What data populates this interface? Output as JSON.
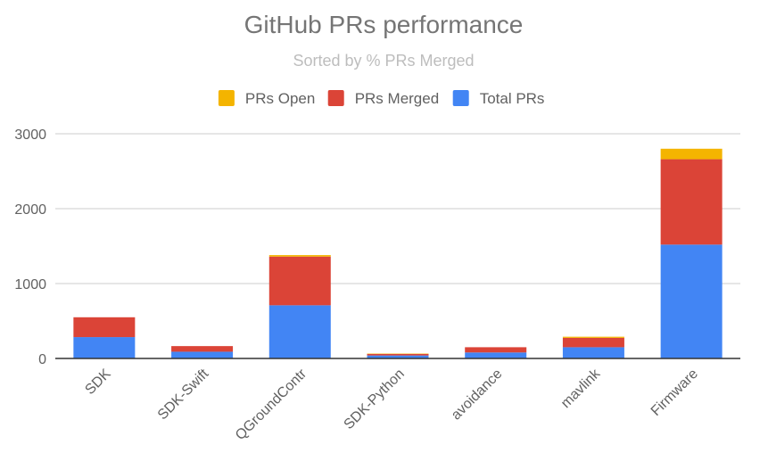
{
  "chart_data": {
    "type": "bar",
    "stacked": true,
    "title": "GitHub PRs performance",
    "subtitle": "Sorted by % PRs Merged",
    "xlabel": "",
    "ylabel": "",
    "ylim": [
      0,
      3000
    ],
    "yticks": [
      0,
      1000,
      2000,
      3000
    ],
    "grid": true,
    "legend_position": "top",
    "categories": [
      "SDK",
      "SDK-Swift",
      "QGroundContr",
      "SDK-Python",
      "avoidance",
      "mavlink",
      "Firmware"
    ],
    "series": [
      {
        "name": "Total PRs",
        "color": "#4285f4",
        "values": [
          285,
          90,
          710,
          40,
          80,
          150,
          1520
        ]
      },
      {
        "name": "PRs Merged",
        "color": "#db4437",
        "values": [
          265,
          75,
          650,
          20,
          70,
          125,
          1140
        ]
      },
      {
        "name": "PRs Open",
        "color": "#f4b400",
        "values": [
          0,
          0,
          20,
          5,
          0,
          15,
          140
        ]
      }
    ],
    "legend_order": [
      "PRs Open",
      "PRs Merged",
      "Total PRs"
    ]
  }
}
